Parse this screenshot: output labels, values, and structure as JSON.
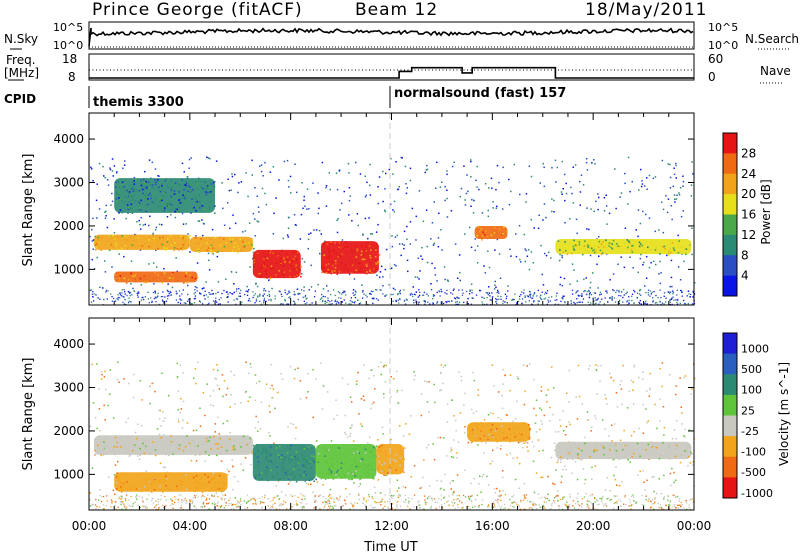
{
  "header": {
    "station": "Prince George (fitACF)",
    "beam": "Beam 12",
    "date": "18/May/2011"
  },
  "noise_panel": {
    "left_label": "N.Sky",
    "right_label": "N.Search",
    "left_ticks": [
      "10^5",
      "10^0"
    ],
    "right_ticks": [
      "10^5",
      "10^0"
    ]
  },
  "freq_panel": {
    "left_label_1": "Freq.",
    "left_label_2": "[MHz]",
    "right_label": "Nave",
    "left_ticks": [
      "18",
      "8"
    ],
    "right_ticks": [
      "60",
      "0"
    ],
    "freq_mhz_approx": 11,
    "nave_series": [
      {
        "t": 0,
        "v": 0
      },
      {
        "t": 12.3,
        "v": 0
      },
      {
        "t": 12.3,
        "v": 18
      },
      {
        "t": 12.8,
        "v": 18
      },
      {
        "t": 12.8,
        "v": 28
      },
      {
        "t": 14.8,
        "v": 28
      },
      {
        "t": 14.8,
        "v": 14
      },
      {
        "t": 15.2,
        "v": 14
      },
      {
        "t": 15.2,
        "v": 28
      },
      {
        "t": 18.5,
        "v": 28
      },
      {
        "t": 18.5,
        "v": 0
      },
      {
        "t": 24,
        "v": 0
      }
    ]
  },
  "cpid_panel": {
    "label": "CPID",
    "modes": [
      {
        "name": "themis 3300",
        "start_hour": 0
      },
      {
        "name": "normalsound (fast) 157",
        "start_hour": 12
      }
    ]
  },
  "chart_data": [
    {
      "type": "heatmap",
      "name": "power",
      "ylabel": "Slant Range [km]",
      "xlabel": "",
      "xlim_hours": [
        0,
        24
      ],
      "ylim_km": [
        180,
        4600
      ],
      "yticks": [
        1000,
        2000,
        3000,
        4000
      ],
      "colorbar": {
        "label": "Power [dB]",
        "range": [
          0,
          32
        ],
        "ticks": [
          "4",
          "8",
          "12",
          "16",
          "20",
          "24",
          "28"
        ],
        "colors": [
          "#0a14e6",
          "#2a4fc4",
          "#2b8a73",
          "#4aa84a",
          "#e6df1a",
          "#f2a419",
          "#f06a14",
          "#e61414"
        ]
      },
      "bands": [
        {
          "t0": 0.2,
          "t1": 4.0,
          "r0": 1450,
          "r1": 1800,
          "value": 20
        },
        {
          "t0": 4.0,
          "t1": 6.5,
          "r0": 1400,
          "r1": 1750,
          "value": 18
        },
        {
          "t0": 1.0,
          "t1": 4.3,
          "r0": 700,
          "r1": 950,
          "value": 24
        },
        {
          "t0": 6.5,
          "t1": 8.4,
          "r0": 800,
          "r1": 1450,
          "value": 28
        },
        {
          "t0": 9.2,
          "t1": 11.5,
          "r0": 900,
          "r1": 1650,
          "value": 28
        },
        {
          "t0": 1.0,
          "t1": 5.0,
          "r0": 2300,
          "r1": 3100,
          "value": 6
        },
        {
          "t0": 15.3,
          "t1": 16.6,
          "r0": 1700,
          "r1": 2000,
          "value": 22
        },
        {
          "t0": 18.5,
          "t1": 23.9,
          "r0": 1350,
          "r1": 1700,
          "value": 14
        }
      ]
    },
    {
      "type": "heatmap",
      "name": "velocity",
      "ylabel": "Slant Range [km]",
      "xlabel": "Time UT",
      "xlim_hours": [
        0,
        24
      ],
      "ylim_km": [
        180,
        4600
      ],
      "yticks": [
        1000,
        2000,
        3000,
        4000
      ],
      "xticks": [
        "00:00",
        "04:00",
        "08:00",
        "12:00",
        "16:00",
        "20:00",
        "00:00"
      ],
      "colorbar": {
        "label": "Velocity [m s^-1]",
        "ticks": [
          "1000",
          "500",
          "100",
          "25",
          "-25",
          "-100",
          "-500",
          "-1000"
        ],
        "colors": [
          "#1f1fd6",
          "#2b5fbf",
          "#2c8a72",
          "#5ec43a",
          "#c8c8c0",
          "#f2a419",
          "#f06a14",
          "#e61414"
        ]
      },
      "bands": [
        {
          "t0": 0.2,
          "t1": 6.5,
          "r0": 1450,
          "r1": 1900,
          "value": 0
        },
        {
          "t0": 1.0,
          "t1": 5.5,
          "r0": 600,
          "r1": 1050,
          "value": -120
        },
        {
          "t0": 6.5,
          "t1": 9.0,
          "r0": 850,
          "r1": 1700,
          "value": 250
        },
        {
          "t0": 9.0,
          "t1": 11.4,
          "r0": 900,
          "r1": 1700,
          "value": 120
        },
        {
          "t0": 11.4,
          "t1": 12.5,
          "r0": 1000,
          "r1": 1700,
          "value": -150
        },
        {
          "t0": 15.0,
          "t1": 17.5,
          "r0": 1750,
          "r1": 2200,
          "value": -120
        },
        {
          "t0": 18.5,
          "t1": 23.9,
          "r0": 1350,
          "r1": 1750,
          "value": 0
        }
      ]
    }
  ]
}
